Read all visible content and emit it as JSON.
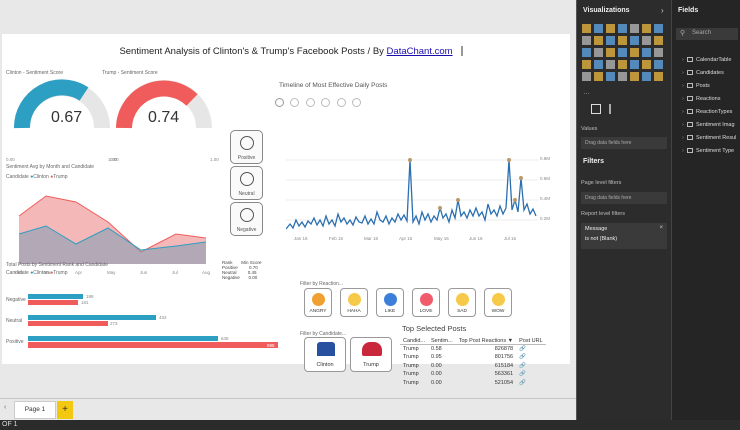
{
  "report": {
    "title": "Sentiment Analysis of Clinton's & Trump's Facebook Posts / By ",
    "title_link": "DataChant.com",
    "clinton_gauge": {
      "label": "Clinton - Sentiment Score",
      "value": "0.67",
      "min": "0.00",
      "max": "1.00"
    },
    "trump_gauge": {
      "label": "Trump - Sentiment Score",
      "value": "0.74",
      "min": "0.00",
      "max": "1.00"
    },
    "timeline_title": "Timeline of Most Effective Daily Posts",
    "area_chart_title": "Sentiment Avg by Month and Candidate",
    "legend_candidate": "Candidate",
    "legend_clinton": "Clinton",
    "legend_trump": "Trump",
    "bar_chart_title": "Total Posts by Sentiment Rank and Candidate",
    "rank_table": {
      "col1": "Rank",
      "col2": "Min Score",
      "rows": [
        [
          "Positive",
          "0.70"
        ],
        [
          "Neutral",
          "0.45"
        ],
        [
          "Negative",
          "0.00"
        ]
      ]
    },
    "sentiment_buttons": [
      "Positive",
      "Neutral",
      "Negative"
    ],
    "filter_by_reaction": "Filter by Reaction...",
    "reactions": [
      "ANGRY",
      "HAHA",
      "LIKE",
      "LOVE",
      "SAD",
      "WOW"
    ],
    "filter_by_candidate": "Filter by Candidate...",
    "candidates": [
      "Clinton",
      "Trump"
    ],
    "top_posts_title": "Top Selected Posts",
    "top_posts_headers": [
      "Candid...",
      "Sentim...",
      "Top Post Reactions",
      "Post URL"
    ],
    "top_posts_rows": [
      [
        "Trump",
        "0.58",
        "826878"
      ],
      [
        "Trump",
        "0.95",
        "801756"
      ],
      [
        "Trump",
        "0.00",
        "615184"
      ],
      [
        "Trump",
        "0.00",
        "563361"
      ],
      [
        "Trump",
        "0.00",
        "521054"
      ]
    ],
    "timeline_y_ticks": [
      "0.8M",
      "0.6M",
      "0.4M",
      "0.2M"
    ],
    "timeline_x_ticks": [
      "Jan 16",
      "Feb 16",
      "Mar 16",
      "Apr 16",
      "May 16",
      "Jun 16",
      "Jul 16"
    ],
    "area_x_ticks": [
      "Feb",
      "Mar",
      "Apr",
      "May",
      "Jun",
      "Jul",
      "Aug"
    ],
    "area_y_ticks": [
      "0.75",
      "0.70",
      "0.65",
      "0.60"
    ],
    "bar_rows": [
      {
        "label": "Negative",
        "clinton": "198",
        "trump": "181"
      },
      {
        "label": "Neutral",
        "clinton": "432",
        "trump": "273"
      },
      {
        "label": "Positive",
        "clinton": "645",
        "trump": "895"
      }
    ]
  },
  "page_tabs": {
    "page1": "Page 1",
    "add": "+"
  },
  "status": "OF 1",
  "viz_pane": {
    "title": "Visualizations",
    "values_label": "Values",
    "drop_here": "Drag data fields here",
    "filters_title": "Filters",
    "page_filters": "Page level filters",
    "page_drop": "Drag data fields here",
    "report_filters": "Report level filters",
    "filter_card_title": "Message",
    "filter_card_value": "is not (Blank)"
  },
  "fields_pane": {
    "title": "Fields",
    "search_placeholder": "Search",
    "items": [
      "CalendarTable",
      "Candidates",
      "Posts",
      "Reactions",
      "ReactionTypes",
      "Sentiment Imag",
      "Sentiment Resul",
      "Sentiment Type"
    ]
  },
  "colors": {
    "clinton": "#2d9fc3",
    "trump": "#f05c5c",
    "timeline": "#2a6fb0",
    "accent": "#d7a93f"
  }
}
